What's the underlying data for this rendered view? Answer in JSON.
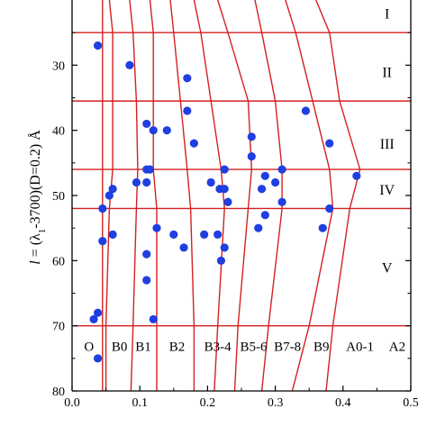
{
  "chart_data": {
    "type": "scatter",
    "title": "",
    "xlabel": "",
    "ylabel": "l = (λ1-3700)(D=0.2) Å",
    "ylabel_parts": {
      "var": "l",
      "eq": " = (λ",
      "sub": "1",
      "rest": "-3700)(D=0.2) Å"
    },
    "xlim": [
      0.0,
      0.5
    ],
    "ylim": [
      80,
      20
    ],
    "y_inverted": true,
    "x_ticks": [
      0.0,
      0.1,
      0.2,
      0.3,
      0.4,
      0.5
    ],
    "x_tick_labels": [
      "0.0",
      "0.1",
      "0.2",
      "0.3",
      "0.4",
      "0.5"
    ],
    "y_ticks": [
      30,
      40,
      50,
      60,
      70,
      80
    ],
    "y_tick_labels": [
      "30",
      "40",
      "50",
      "60",
      "70",
      "80"
    ],
    "grid": false,
    "colors": {
      "points": "#1f3fe0",
      "lines": "#d42020",
      "axis": "#000000"
    },
    "points": [
      {
        "x": 0.038,
        "y": 27
      },
      {
        "x": 0.085,
        "y": 30
      },
      {
        "x": 0.17,
        "y": 32
      },
      {
        "x": 0.17,
        "y": 37
      },
      {
        "x": 0.345,
        "y": 37
      },
      {
        "x": 0.11,
        "y": 39
      },
      {
        "x": 0.12,
        "y": 40
      },
      {
        "x": 0.14,
        "y": 40
      },
      {
        "x": 0.265,
        "y": 41
      },
      {
        "x": 0.18,
        "y": 42
      },
      {
        "x": 0.38,
        "y": 42
      },
      {
        "x": 0.265,
        "y": 44
      },
      {
        "x": 0.11,
        "y": 46
      },
      {
        "x": 0.115,
        "y": 46
      },
      {
        "x": 0.225,
        "y": 46
      },
      {
        "x": 0.31,
        "y": 46
      },
      {
        "x": 0.285,
        "y": 47
      },
      {
        "x": 0.42,
        "y": 47
      },
      {
        "x": 0.095,
        "y": 48
      },
      {
        "x": 0.11,
        "y": 48
      },
      {
        "x": 0.205,
        "y": 48
      },
      {
        "x": 0.3,
        "y": 48
      },
      {
        "x": 0.06,
        "y": 49
      },
      {
        "x": 0.218,
        "y": 49
      },
      {
        "x": 0.225,
        "y": 49
      },
      {
        "x": 0.28,
        "y": 49
      },
      {
        "x": 0.055,
        "y": 50
      },
      {
        "x": 0.23,
        "y": 51
      },
      {
        "x": 0.31,
        "y": 51
      },
      {
        "x": 0.045,
        "y": 52
      },
      {
        "x": 0.38,
        "y": 52
      },
      {
        "x": 0.285,
        "y": 53
      },
      {
        "x": 0.125,
        "y": 55
      },
      {
        "x": 0.275,
        "y": 55
      },
      {
        "x": 0.37,
        "y": 55
      },
      {
        "x": 0.06,
        "y": 56
      },
      {
        "x": 0.15,
        "y": 56
      },
      {
        "x": 0.195,
        "y": 56
      },
      {
        "x": 0.215,
        "y": 56
      },
      {
        "x": 0.045,
        "y": 57
      },
      {
        "x": 0.165,
        "y": 58
      },
      {
        "x": 0.225,
        "y": 58
      },
      {
        "x": 0.11,
        "y": 59
      },
      {
        "x": 0.22,
        "y": 60
      },
      {
        "x": 0.11,
        "y": 63
      },
      {
        "x": 0.038,
        "y": 68
      },
      {
        "x": 0.032,
        "y": 69
      },
      {
        "x": 0.12,
        "y": 69
      },
      {
        "x": 0.038,
        "y": 75
      }
    ],
    "horizontal_lines_y": [
      25,
      35.5,
      46,
      52,
      70
    ],
    "vertical_curves": [
      [
        [
          0.045,
          20
        ],
        [
          0.045,
          70
        ],
        [
          0.045,
          80
        ]
      ],
      [
        [
          0.055,
          20
        ],
        [
          0.06,
          25
        ],
        [
          0.06,
          46
        ],
        [
          0.055,
          52
        ],
        [
          0.05,
          70
        ],
        [
          0.05,
          80
        ]
      ],
      [
        [
          0.085,
          20
        ],
        [
          0.09,
          25
        ],
        [
          0.095,
          35.5
        ],
        [
          0.097,
          46
        ],
        [
          0.095,
          52
        ],
        [
          0.09,
          70
        ],
        [
          0.087,
          80
        ]
      ],
      [
        [
          0.115,
          20
        ],
        [
          0.12,
          25
        ],
        [
          0.12,
          46
        ],
        [
          0.125,
          52
        ],
        [
          0.125,
          70
        ],
        [
          0.125,
          80
        ]
      ],
      [
        [
          0.145,
          20
        ],
        [
          0.15,
          25
        ],
        [
          0.16,
          35.5
        ],
        [
          0.17,
          46
        ],
        [
          0.175,
          52
        ],
        [
          0.18,
          70
        ],
        [
          0.18,
          80
        ]
      ],
      [
        [
          0.18,
          20
        ],
        [
          0.19,
          25
        ],
        [
          0.205,
          35.5
        ],
        [
          0.22,
          46
        ],
        [
          0.225,
          52
        ],
        [
          0.215,
          70
        ],
        [
          0.21,
          80
        ]
      ],
      [
        [
          0.215,
          20
        ],
        [
          0.23,
          25
        ],
        [
          0.26,
          35.5
        ],
        [
          0.265,
          46
        ],
        [
          0.26,
          52
        ],
        [
          0.245,
          70
        ],
        [
          0.24,
          80
        ]
      ],
      [
        [
          0.27,
          20
        ],
        [
          0.28,
          25
        ],
        [
          0.3,
          35.5
        ],
        [
          0.31,
          46
        ],
        [
          0.31,
          52
        ],
        [
          0.29,
          70
        ],
        [
          0.28,
          80
        ]
      ],
      [
        [
          0.315,
          20
        ],
        [
          0.33,
          25
        ],
        [
          0.355,
          35.5
        ],
        [
          0.38,
          46
        ],
        [
          0.385,
          52
        ],
        [
          0.35,
          70
        ],
        [
          0.325,
          80
        ]
      ],
      [
        [
          0.36,
          20
        ],
        [
          0.38,
          25
        ],
        [
          0.395,
          35.5
        ],
        [
          0.425,
          46
        ],
        [
          0.41,
          52
        ],
        [
          0.385,
          70
        ],
        [
          0.375,
          80
        ]
      ]
    ],
    "region_labels": [
      {
        "text": "I",
        "x": 0.465,
        "y": 22
      },
      {
        "text": "II",
        "x": 0.465,
        "y": 31
      },
      {
        "text": "III",
        "x": 0.465,
        "y": 42
      },
      {
        "text": "IV",
        "x": 0.465,
        "y": 49
      },
      {
        "text": "V",
        "x": 0.465,
        "y": 61
      }
    ],
    "class_labels": [
      {
        "text": "O",
        "x": 0.025,
        "y": 73
      },
      {
        "text": "B0",
        "x": 0.07,
        "y": 73
      },
      {
        "text": "B1",
        "x": 0.105,
        "y": 73
      },
      {
        "text": "B2",
        "x": 0.155,
        "y": 73
      },
      {
        "text": "B3-4",
        "x": 0.215,
        "y": 73
      },
      {
        "text": "B5-6",
        "x": 0.268,
        "y": 73
      },
      {
        "text": "B7-8",
        "x": 0.318,
        "y": 73
      },
      {
        "text": "B9",
        "x": 0.368,
        "y": 73
      },
      {
        "text": "A0-1",
        "x": 0.425,
        "y": 73
      },
      {
        "text": "A2",
        "x": 0.48,
        "y": 73
      }
    ]
  }
}
